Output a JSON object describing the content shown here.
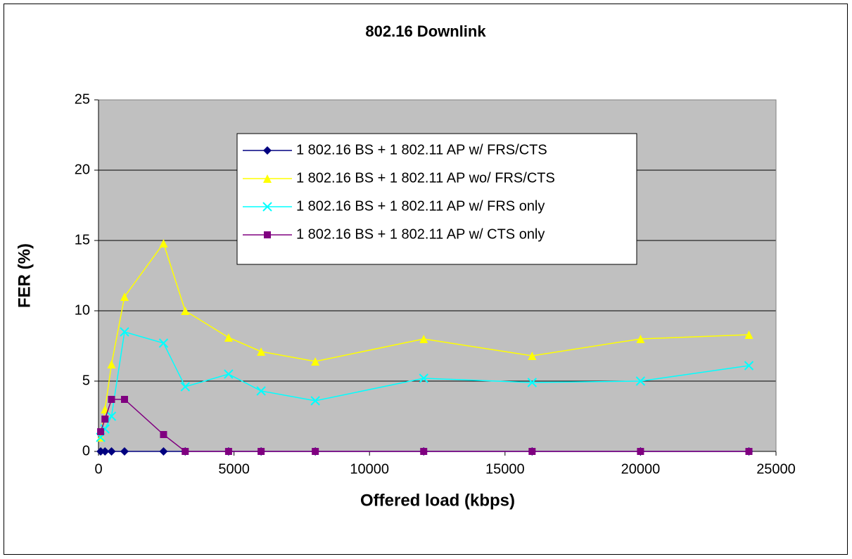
{
  "chart_data": {
    "type": "line",
    "title": "802.16 Downlink",
    "xlabel": "Offered load (kbps)",
    "ylabel": "FER (%)",
    "x": [
      80,
      240,
      480,
      960,
      2400,
      3200,
      4800,
      6000,
      8000,
      12000,
      16000,
      20000,
      24000
    ],
    "series": [
      {
        "name": "1 802.16 BS + 1 802.11 AP w/ FRS/CTS",
        "color": "#000080",
        "marker": "diamond",
        "values": [
          0,
          0,
          0,
          0,
          0,
          0,
          0,
          0,
          0,
          0,
          0,
          0,
          0
        ]
      },
      {
        "name": "1 802.16 BS + 1 802.11 AP wo/ FRS/CTS",
        "color": "#ffff00",
        "marker": "triangle",
        "values": [
          1.0,
          3.0,
          6.2,
          11.0,
          14.8,
          10.0,
          8.1,
          7.1,
          6.4,
          8.0,
          6.8,
          8.0,
          8.3
        ]
      },
      {
        "name": "1 802.16 BS + 1 802.11 AP w/ FRS only",
        "color": "#00ffff",
        "marker": "x",
        "values": [
          1.0,
          1.6,
          2.5,
          8.5,
          7.7,
          4.6,
          5.5,
          4.3,
          3.6,
          5.2,
          4.9,
          5.0,
          6.1
        ]
      },
      {
        "name": "1 802.16 BS + 1 802.11 AP w/ CTS only",
        "color": "#800080",
        "marker": "square",
        "values": [
          1.4,
          2.3,
          3.7,
          3.7,
          1.2,
          0,
          0,
          0,
          0,
          0,
          0,
          0,
          0
        ]
      }
    ],
    "xlim": [
      0,
      25000
    ],
    "xticks": [
      0,
      5000,
      10000,
      15000,
      20000,
      25000
    ],
    "ylim": [
      0,
      25
    ],
    "yticks": [
      0,
      5,
      10,
      15,
      20,
      25
    ],
    "grid": true,
    "plot_background": "#c0c0c0"
  }
}
